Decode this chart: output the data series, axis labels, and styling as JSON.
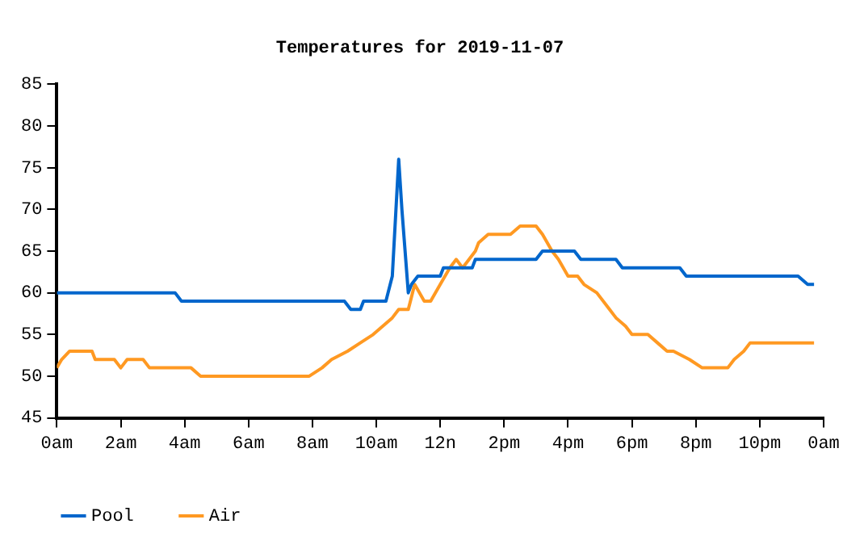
{
  "chart_data": {
    "type": "line",
    "title": "Temperatures for 2019-11-07",
    "xlim": [
      "2019-11-07T00:00",
      "2019-11-08T00:00"
    ],
    "xticks": [
      {
        "value": "2019-11-07T00:00",
        "label": "0am"
      },
      {
        "value": "2019-11-07T02:00",
        "label": "2am"
      },
      {
        "value": "2019-11-07T04:00",
        "label": "4am"
      },
      {
        "value": "2019-11-07T06:00",
        "label": "6am"
      },
      {
        "value": "2019-11-07T08:00",
        "label": "8am"
      },
      {
        "value": "2019-11-07T10:00",
        "label": "10am"
      },
      {
        "value": "2019-11-07T12:00",
        "label": "12n"
      },
      {
        "value": "2019-11-07T14:00",
        "label": "2pm"
      },
      {
        "value": "2019-11-07T16:00",
        "label": "4pm"
      },
      {
        "value": "2019-11-07T18:00",
        "label": "6pm"
      },
      {
        "value": "2019-11-07T20:00",
        "label": "8pm"
      },
      {
        "value": "2019-11-07T22:00",
        "label": "10pm"
      },
      {
        "value": "2019-11-08T00:00",
        "label": "0am"
      }
    ],
    "ylim": [
      45,
      85
    ],
    "yticks": [
      45,
      50,
      55,
      60,
      65,
      70,
      75,
      80,
      85
    ],
    "grid": false,
    "legend": "bottom left",
    "marker": "none",
    "line_style": "solid",
    "series": [
      {
        "name": "Pool",
        "color": "#0066cc",
        "x": [
          "2019-11-07T00:00",
          "2019-11-07T03:42",
          "2019-11-07T03:54",
          "2019-11-07T09:00",
          "2019-11-07T09:12",
          "2019-11-07T09:30",
          "2019-11-07T09:36",
          "2019-11-07T10:18",
          "2019-11-07T10:30",
          "2019-11-07T10:42",
          "2019-11-07T10:48",
          "2019-11-07T11:00",
          "2019-11-07T11:06",
          "2019-11-07T11:18",
          "2019-11-07T12:00",
          "2019-11-07T12:06",
          "2019-11-07T13:00",
          "2019-11-07T13:06",
          "2019-11-07T15:00",
          "2019-11-07T15:12",
          "2019-11-07T16:12",
          "2019-11-07T16:24",
          "2019-11-07T17:30",
          "2019-11-07T17:42",
          "2019-11-07T19:30",
          "2019-11-07T19:42",
          "2019-11-07T23:12",
          "2019-11-07T23:30",
          "2019-11-07T23:42"
        ],
        "values": [
          60,
          60,
          59,
          59,
          58,
          58,
          59,
          59,
          62,
          76,
          70,
          60,
          61,
          62,
          62,
          63,
          63,
          64,
          64,
          65,
          65,
          64,
          64,
          63,
          63,
          62,
          62,
          61,
          61
        ]
      },
      {
        "name": "Air",
        "color": "#ff9922",
        "x": [
          "2019-11-07T00:00",
          "2019-11-07T00:09",
          "2019-11-07T00:24",
          "2019-11-07T01:06",
          "2019-11-07T01:12",
          "2019-11-07T01:48",
          "2019-11-07T02:00",
          "2019-11-07T02:12",
          "2019-11-07T02:42",
          "2019-11-07T02:54",
          "2019-11-07T04:12",
          "2019-11-07T04:30",
          "2019-11-07T07:54",
          "2019-11-07T08:18",
          "2019-11-07T08:36",
          "2019-11-07T09:06",
          "2019-11-07T09:30",
          "2019-11-07T09:54",
          "2019-11-07T10:12",
          "2019-11-07T10:30",
          "2019-11-07T10:42",
          "2019-11-07T11:00",
          "2019-11-07T11:12",
          "2019-11-07T11:30",
          "2019-11-07T11:42",
          "2019-11-07T12:00",
          "2019-11-07T12:18",
          "2019-11-07T12:30",
          "2019-11-07T12:42",
          "2019-11-07T13:06",
          "2019-11-07T13:12",
          "2019-11-07T13:30",
          "2019-11-07T14:12",
          "2019-11-07T14:30",
          "2019-11-07T15:00",
          "2019-11-07T15:12",
          "2019-11-07T15:30",
          "2019-11-07T15:42",
          "2019-11-07T16:00",
          "2019-11-07T16:18",
          "2019-11-07T16:30",
          "2019-11-07T16:54",
          "2019-11-07T17:18",
          "2019-11-07T17:30",
          "2019-11-07T17:48",
          "2019-11-07T18:00",
          "2019-11-07T18:30",
          "2019-11-07T18:48",
          "2019-11-07T19:06",
          "2019-11-07T19:18",
          "2019-11-07T19:48",
          "2019-11-07T20:12",
          "2019-11-07T21:00",
          "2019-11-07T21:12",
          "2019-11-07T21:30",
          "2019-11-07T21:42",
          "2019-11-07T23:42"
        ],
        "values": [
          51,
          52,
          53,
          53,
          52,
          52,
          51,
          52,
          52,
          51,
          51,
          50,
          50,
          51,
          52,
          53,
          54,
          55,
          56,
          57,
          58,
          58,
          61,
          59,
          59,
          61,
          63,
          64,
          63,
          65,
          66,
          67,
          67,
          68,
          68,
          67,
          65,
          64,
          62,
          62,
          61,
          60,
          58,
          57,
          56,
          55,
          55,
          54,
          53,
          53,
          52,
          51,
          51,
          52,
          53,
          54,
          54
        ]
      }
    ]
  }
}
